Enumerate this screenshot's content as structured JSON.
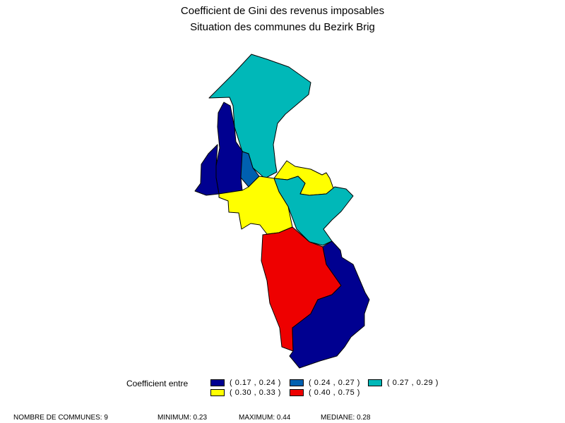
{
  "title_line1": "Coefficient de Gini des revenus imposables",
  "title_line2": "Situation des communes du Bezirk Brig",
  "colors": {
    "class1": "#000090",
    "class2": "#0060B0",
    "class3": "#00B8B8",
    "class4": "#FFFF00",
    "class5": "#EE0000"
  },
  "communes": [
    {
      "fill": "class3"
    },
    {
      "fill": "class1"
    },
    {
      "fill": "class2"
    },
    {
      "fill": "class4"
    },
    {
      "fill": "class4"
    },
    {
      "fill": "class3"
    },
    {
      "fill": "class5"
    },
    {
      "fill": "class1"
    },
    {
      "fill": "class1"
    }
  ],
  "legend": {
    "title": "Coefficient entre",
    "items": [
      {
        "label": "( 0.17 , 0.24 )",
        "color": "#000090"
      },
      {
        "label": "( 0.24 , 0.27 )",
        "color": "#0060B0"
      },
      {
        "label": "( 0.27 , 0.29 )",
        "color": "#00B8B8"
      },
      {
        "label": "( 0.30 , 0.33 )",
        "color": "#FFFF00"
      },
      {
        "label": "( 0.40 , 0.75 )",
        "color": "#EE0000"
      }
    ]
  },
  "footer": {
    "count": "NOMBRE DE COMMUNES: 9",
    "minimum": "MINIMUM: 0.23",
    "maximum": "MAXIMUM: 0.44",
    "median": "MEDIANE: 0.28"
  }
}
